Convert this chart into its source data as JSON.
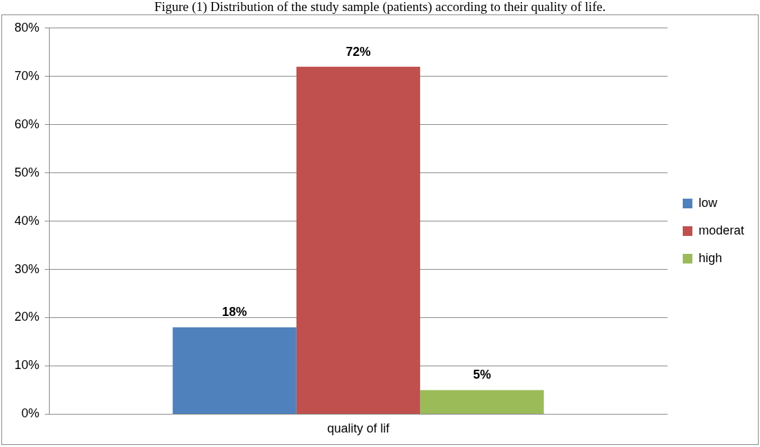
{
  "chart_data": {
    "type": "bar",
    "title": "Figure (1) Distribution of the study sample (patients) according to their quality of life.",
    "categories": [
      "quality of lif"
    ],
    "series": [
      {
        "name": "low",
        "color": "#4f81bd",
        "values": [
          18
        ]
      },
      {
        "name": "moderat",
        "color": "#c0504d",
        "values": [
          72
        ]
      },
      {
        "name": "high",
        "color": "#9bbb59",
        "values": [
          5
        ]
      }
    ],
    "value_labels": [
      "18%",
      "72%",
      "5%"
    ],
    "ylim": [
      0,
      80
    ],
    "yticks": [
      {
        "value": 0,
        "label": "0%"
      },
      {
        "value": 10,
        "label": "10%"
      },
      {
        "value": 20,
        "label": "20%"
      },
      {
        "value": 30,
        "label": "30%"
      },
      {
        "value": 40,
        "label": "40%"
      },
      {
        "value": 50,
        "label": "50%"
      },
      {
        "value": 60,
        "label": "60%"
      },
      {
        "value": 70,
        "label": "70%"
      },
      {
        "value": 80,
        "label": "80%"
      }
    ],
    "grid": "y",
    "legend": "right"
  }
}
